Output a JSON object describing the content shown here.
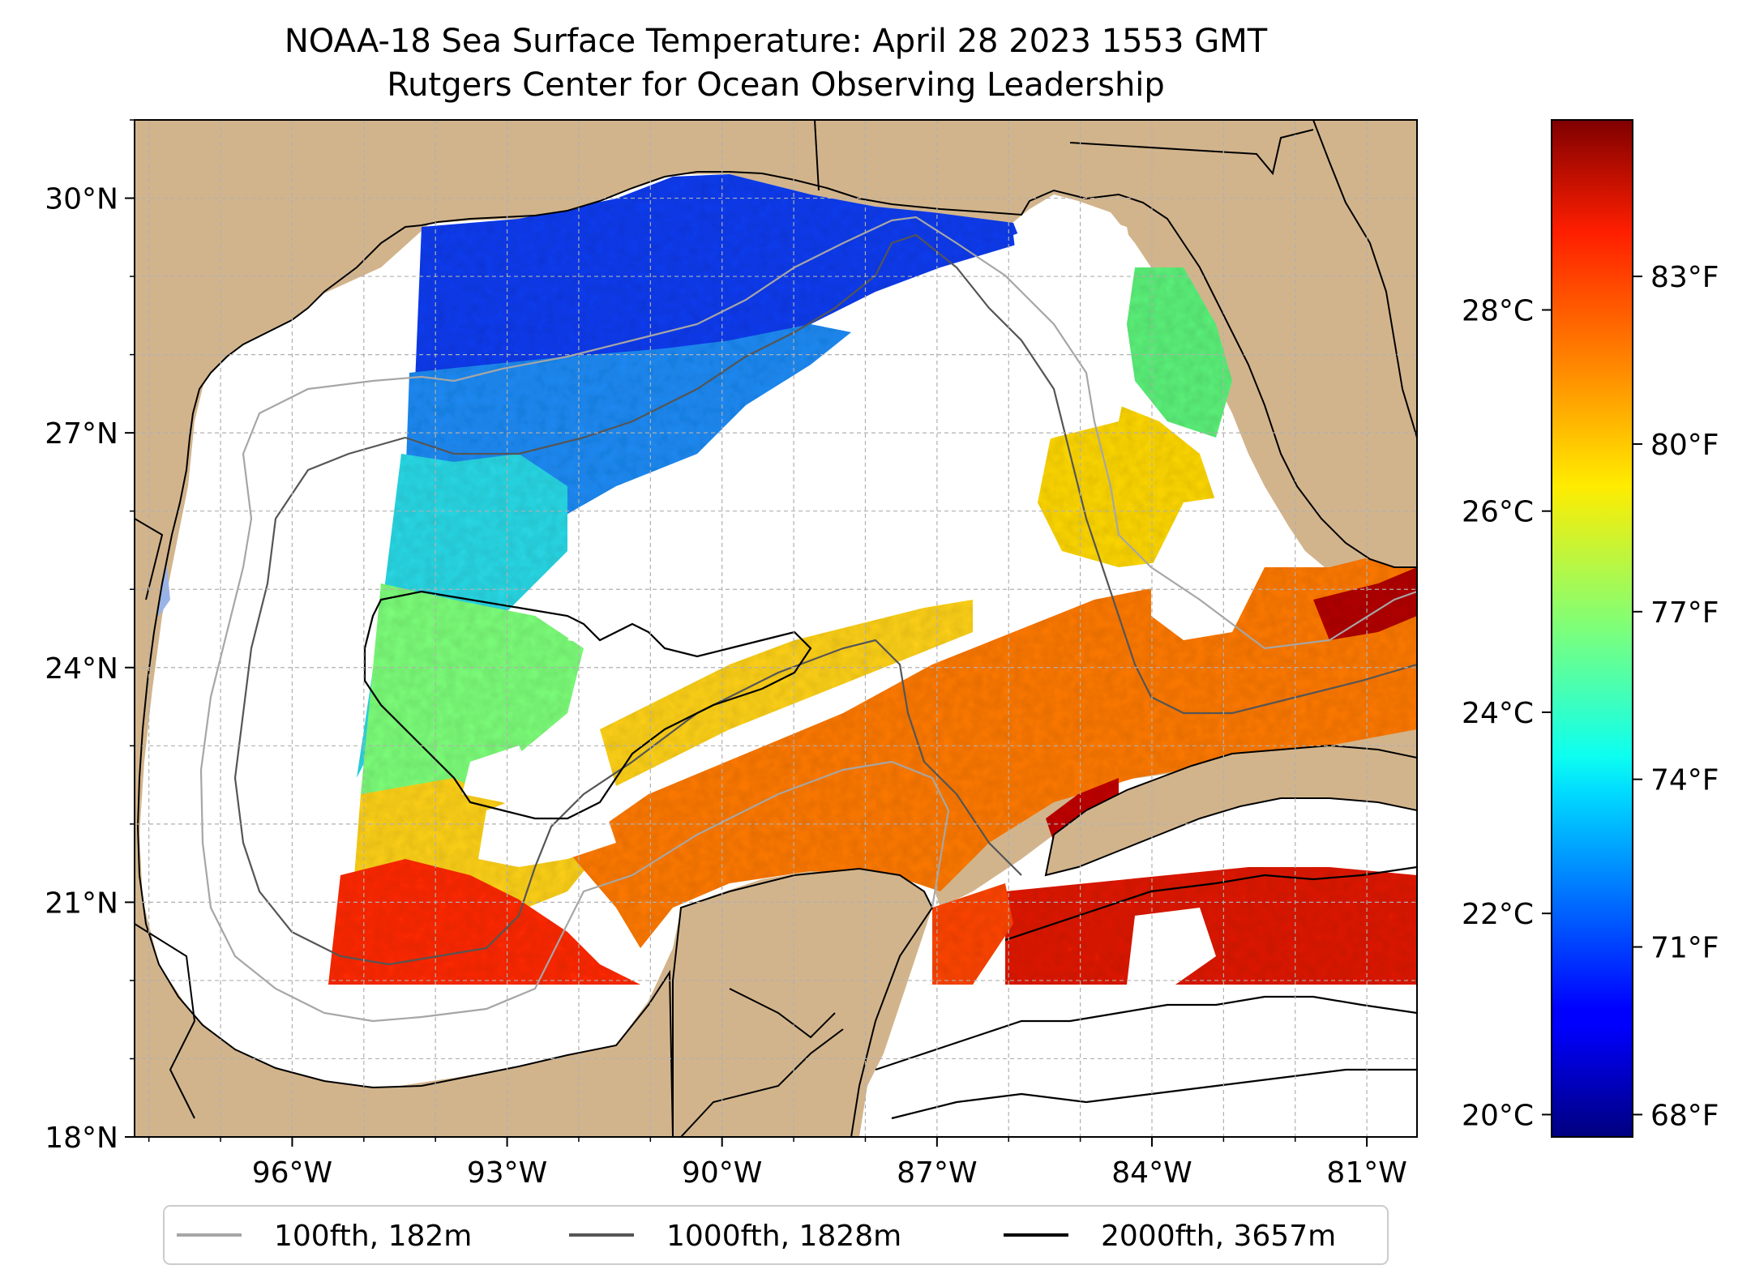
{
  "title": "NOAA-18 Sea Surface Temperature: April 28 2023 1553 GMT",
  "subtitle": "Rutgers Center for Ocean Observing Leadership",
  "map": {
    "lon_range": [
      -98.2,
      -80.3
    ],
    "lat_range": [
      18.0,
      31.0
    ],
    "lon_ticks": [
      {
        "value": -96,
        "label": "96°W"
      },
      {
        "value": -93,
        "label": "93°W"
      },
      {
        "value": -90,
        "label": "90°W"
      },
      {
        "value": -87,
        "label": "87°W"
      },
      {
        "value": -84,
        "label": "84°W"
      },
      {
        "value": -81,
        "label": "81°W"
      }
    ],
    "lat_ticks": [
      {
        "value": 30,
        "label": "30°N"
      },
      {
        "value": 27,
        "label": "27°N"
      },
      {
        "value": 24,
        "label": "24°N"
      },
      {
        "value": 21,
        "label": "21°N"
      },
      {
        "value": 18,
        "label": "18°N"
      }
    ],
    "grid": true,
    "colors": {
      "land": "#d2b48c",
      "water_body": "#99b3e6",
      "ocean_nodata": "#ffffff"
    }
  },
  "colorbar": {
    "colormap": "jet",
    "range_f": [
      67.6,
      85.8
    ],
    "celsius_ticks": [
      {
        "value": 20,
        "label": "20°C"
      },
      {
        "value": 22,
        "label": "22°C"
      },
      {
        "value": 24,
        "label": "24°C"
      },
      {
        "value": 26,
        "label": "26°C"
      },
      {
        "value": 28,
        "label": "28°C"
      }
    ],
    "fahrenheit_ticks": [
      {
        "value": 68,
        "label": "68°F"
      },
      {
        "value": 71,
        "label": "71°F"
      },
      {
        "value": 74,
        "label": "74°F"
      },
      {
        "value": 77,
        "label": "77°F"
      },
      {
        "value": 80,
        "label": "80°F"
      },
      {
        "value": 83,
        "label": "83°F"
      }
    ]
  },
  "legend": {
    "location": "bottom",
    "items": [
      {
        "label": "100fth, 182m",
        "color": "#a6a6a6"
      },
      {
        "label": "1000fth, 1828m",
        "color": "#555555"
      },
      {
        "label": "2000fth, 3657m",
        "color": "#000000"
      }
    ]
  }
}
